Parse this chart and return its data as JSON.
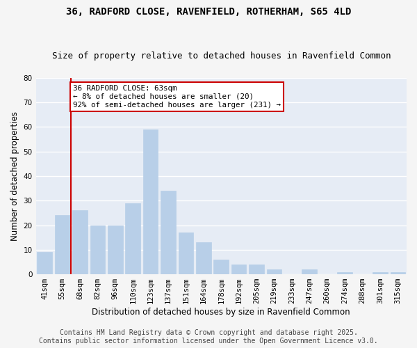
{
  "title": "36, RADFORD CLOSE, RAVENFIELD, ROTHERHAM, S65 4LD",
  "subtitle": "Size of property relative to detached houses in Ravenfield Common",
  "xlabel": "Distribution of detached houses by size in Ravenfield Common",
  "ylabel": "Number of detached properties",
  "categories": [
    "41sqm",
    "55sqm",
    "68sqm",
    "82sqm",
    "96sqm",
    "110sqm",
    "123sqm",
    "137sqm",
    "151sqm",
    "164sqm",
    "178sqm",
    "192sqm",
    "205sqm",
    "219sqm",
    "233sqm",
    "247sqm",
    "260sqm",
    "274sqm",
    "288sqm",
    "301sqm",
    "315sqm"
  ],
  "values": [
    9,
    24,
    26,
    20,
    20,
    29,
    59,
    34,
    17,
    13,
    6,
    4,
    4,
    2,
    0,
    2,
    0,
    1,
    0,
    1,
    1
  ],
  "bar_color": "#b8cfe8",
  "bar_edge_color": "#b8cfe8",
  "vline_x_index": 1.5,
  "vline_color": "#cc0000",
  "annotation_text": "36 RADFORD CLOSE: 63sqm\n← 8% of detached houses are smaller (20)\n92% of semi-detached houses are larger (231) →",
  "annotation_box_color": "#ffffff",
  "annotation_box_edge": "#cc0000",
  "ylim": [
    0,
    80
  ],
  "yticks": [
    0,
    10,
    20,
    30,
    40,
    50,
    60,
    70,
    80
  ],
  "background_color": "#e6ecf5",
  "fig_background_color": "#f5f5f5",
  "grid_color": "#ffffff",
  "footer": "Contains HM Land Registry data © Crown copyright and database right 2025.\nContains public sector information licensed under the Open Government Licence v3.0.",
  "title_fontsize": 10,
  "subtitle_fontsize": 9,
  "xlabel_fontsize": 8.5,
  "ylabel_fontsize": 8.5,
  "tick_fontsize": 7.5,
  "footer_fontsize": 7,
  "annot_fontsize": 7.8
}
